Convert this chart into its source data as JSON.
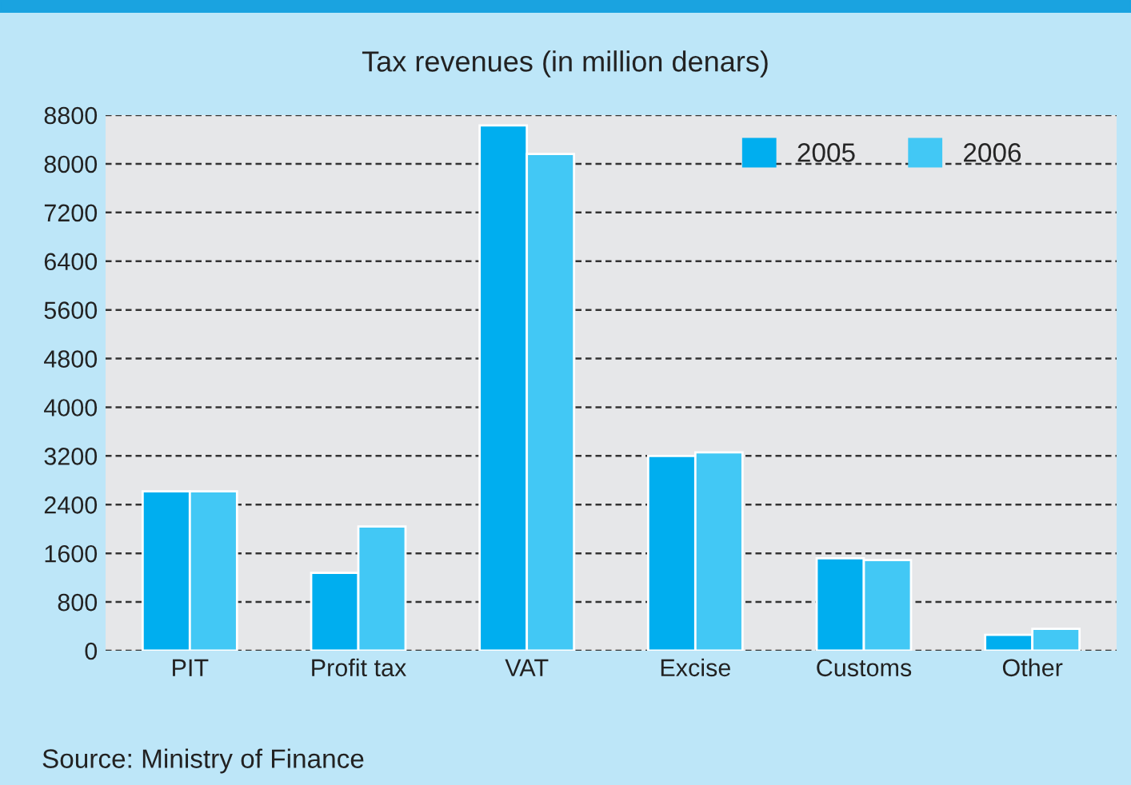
{
  "chart_data": {
    "type": "bar",
    "title": "Tax revenues (in million denars)",
    "categories": [
      "PIT",
      "Profit tax",
      "VAT",
      "Excise",
      "Customs",
      "Other"
    ],
    "series": [
      {
        "name": "2005",
        "color": "#00aeef",
        "values": [
          2620,
          1280,
          8630,
          3200,
          1520,
          260
        ]
      },
      {
        "name": "2006",
        "color": "#42c8f5",
        "values": [
          2620,
          2040,
          8160,
          3260,
          1490,
          360
        ]
      }
    ],
    "ylim": [
      0,
      8800
    ],
    "yticks": [
      0,
      800,
      1600,
      2400,
      3200,
      4000,
      4800,
      5600,
      6400,
      7200,
      8000,
      8800
    ],
    "grid": "y",
    "legend": "top right",
    "annotations": [
      "Source: Ministry of Finance"
    ]
  }
}
